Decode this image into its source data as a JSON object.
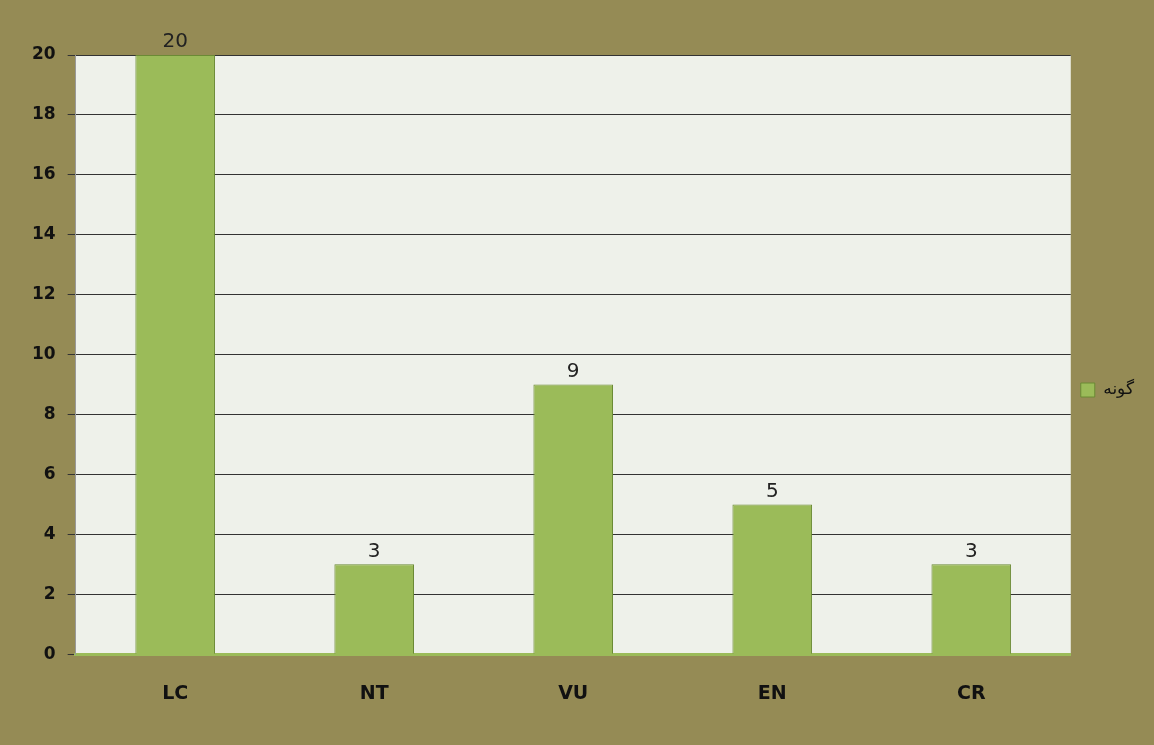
{
  "chart_data": {
    "type": "bar",
    "categories": [
      "LC",
      "NT",
      "VU",
      "EN",
      "CR"
    ],
    "series": [
      {
        "name": "گونه",
        "color": "#9bbb59",
        "values": [
          20,
          3,
          9,
          5,
          3
        ]
      }
    ],
    "ylim": [
      0,
      20
    ],
    "yticks": [
      0,
      2,
      4,
      6,
      8,
      10,
      12,
      14,
      16,
      18,
      20
    ],
    "grid": "y",
    "legend": "right",
    "data_labels": true
  }
}
